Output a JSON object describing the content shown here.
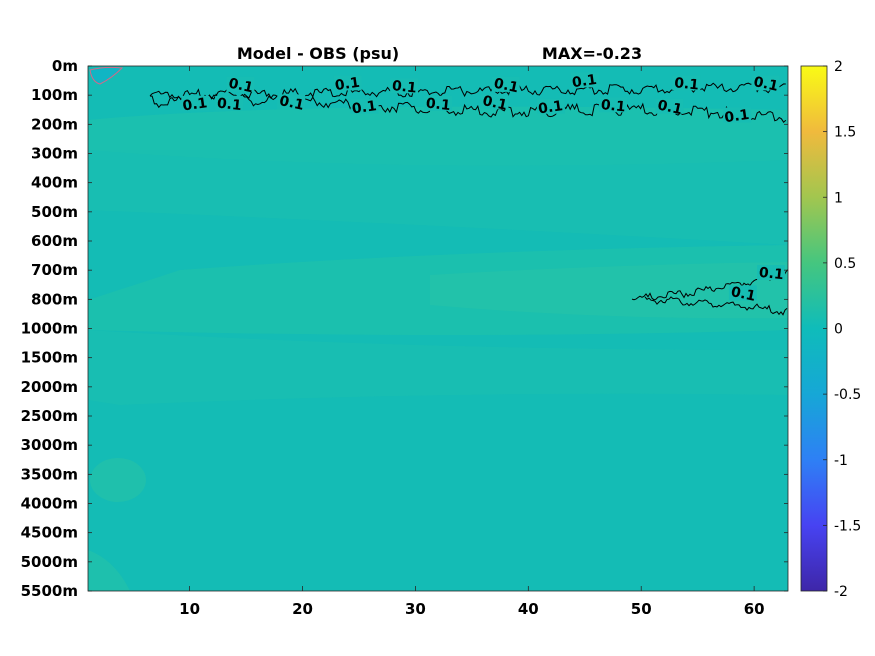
{
  "chart_data": {
    "type": "heatmap",
    "title": "Model - OBS (psu)",
    "subtitle": "MAX=-0.23",
    "x_ticks": [
      10,
      20,
      30,
      40,
      50,
      60
    ],
    "xlim": [
      1,
      63
    ],
    "y_ticks": [
      "0m",
      "100m",
      "200m",
      "300m",
      "400m",
      "500m",
      "600m",
      "700m",
      "800m",
      "1000m",
      "1500m",
      "2000m",
      "2500m",
      "3000m",
      "3500m",
      "4000m",
      "4500m",
      "5000m",
      "5500m"
    ],
    "colorbar_ticks": [
      "2",
      "1.5",
      "1",
      "0.5",
      "0",
      "-0.5",
      "-1",
      "-1.5",
      "-2"
    ],
    "clim": [
      -2,
      2
    ],
    "colormap": [
      "#3e26a8",
      "#4743f2",
      "#2e80f5",
      "#16a7d6",
      "#0fbcba",
      "#45c67f",
      "#a2c64f",
      "#f0ba3d",
      "#f9fb15"
    ],
    "contour_labels": [
      {
        "text": "0.1",
        "x": 14.5,
        "y_level": 0.75
      },
      {
        "text": "0.1",
        "x": 24,
        "y_level": 0.7
      },
      {
        "text": "0.1",
        "x": 29,
        "y_level": 0.8
      },
      {
        "text": "0.1",
        "x": 38,
        "y_level": 0.75
      },
      {
        "text": "0.1",
        "x": 45,
        "y_level": 0.6
      },
      {
        "text": "0.1",
        "x": 54,
        "y_level": 0.7
      },
      {
        "text": "0.1",
        "x": 61,
        "y_level": 0.7
      },
      {
        "text": "0.1",
        "x": 10.5,
        "y_level": 1.4
      },
      {
        "text": "0.1",
        "x": 13.5,
        "y_level": 1.4
      },
      {
        "text": "0.1",
        "x": 19,
        "y_level": 1.35
      },
      {
        "text": "0.1",
        "x": 25.5,
        "y_level": 1.5
      },
      {
        "text": "0.1",
        "x": 32,
        "y_level": 1.4
      },
      {
        "text": "0.1",
        "x": 37,
        "y_level": 1.35
      },
      {
        "text": "0.1",
        "x": 42,
        "y_level": 1.5
      },
      {
        "text": "0.1",
        "x": 47.5,
        "y_level": 1.45
      },
      {
        "text": "0.1",
        "x": 52.5,
        "y_level": 1.5
      },
      {
        "text": "0.1",
        "x": 58.5,
        "y_level": 1.8
      },
      {
        "text": "0.1",
        "x": 61.5,
        "y_level": 7.2
      },
      {
        "text": "0.1",
        "x": 59,
        "y_level": 7.9
      }
    ]
  }
}
